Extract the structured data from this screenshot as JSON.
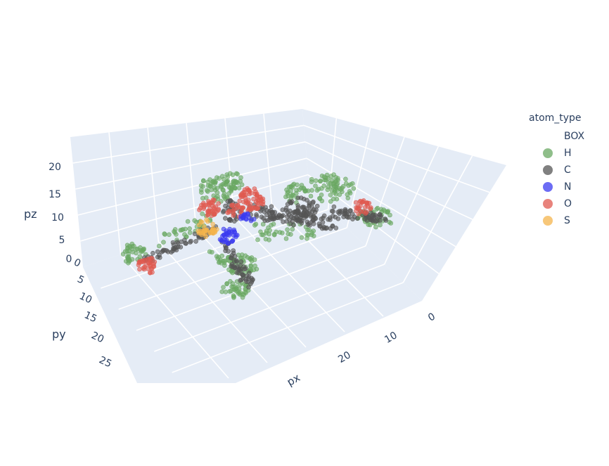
{
  "chart_data": {
    "type": "scatter",
    "legend_title": "atom_type",
    "axes": {
      "x": {
        "label": "px",
        "ticks": [
          0,
          10,
          20
        ]
      },
      "y": {
        "label": "py",
        "ticks": [
          0,
          5,
          10,
          15,
          20,
          25
        ]
      },
      "z": {
        "label": "pz",
        "ticks": [
          0,
          5,
          10,
          15,
          20
        ]
      }
    },
    "series": [
      {
        "name": "BOX",
        "color": ""
      },
      {
        "name": "H",
        "color": "#6aa863"
      },
      {
        "name": "C",
        "color": "#555555"
      },
      {
        "name": "N",
        "color": "#3b3bf0"
      },
      {
        "name": "O",
        "color": "#e05a50"
      },
      {
        "name": "S",
        "color": "#f4b44c"
      }
    ],
    "legend_placement": "right",
    "grid": true
  }
}
